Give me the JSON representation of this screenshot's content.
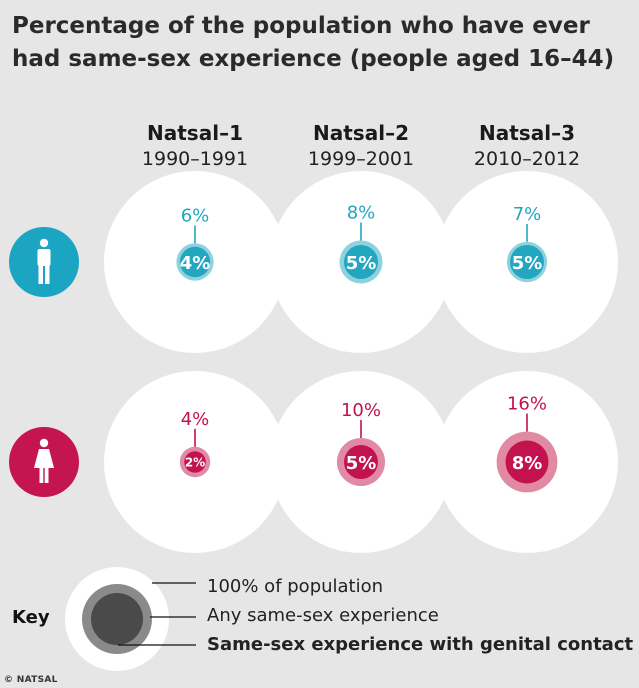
{
  "title": "Percentage of the population who have ever had same-sex experience (people aged 16–44)",
  "source": "© NATSAL",
  "colors": {
    "men_inner": "#23a6c0",
    "men_outer": "#8fd2df",
    "women_inner": "#c2124f",
    "women_outer": "#e08aa4",
    "men_icon_bg": "#1ba5c3",
    "women_icon_bg": "#c51551",
    "key_outer": "#8a8a8a",
    "key_inner": "#4a4a4a"
  },
  "key": {
    "title": "Key",
    "items": [
      "100% of population",
      "Any same-sex experience",
      "Same-sex experience with genital contact"
    ]
  },
  "chart_data": {
    "type": "bubble",
    "title": "Percentage of the population who have ever had same-sex experience (people aged 16–44)",
    "categories": [
      {
        "name": "Natsal–1",
        "years": "1990–1991"
      },
      {
        "name": "Natsal–2",
        "years": "1999–2001"
      },
      {
        "name": "Natsal–3",
        "years": "2010–2012"
      }
    ],
    "series": [
      {
        "group": "men",
        "icon": "male-icon",
        "any": [
          6,
          8,
          7
        ],
        "genital": [
          4,
          5,
          5
        ],
        "any_labels": [
          "6%",
          "8%",
          "7%"
        ],
        "genital_labels": [
          "4%",
          "5%",
          "5%"
        ]
      },
      {
        "group": "women",
        "icon": "female-icon",
        "any": [
          4,
          10,
          16
        ],
        "genital": [
          2,
          5,
          8
        ],
        "any_labels": [
          "4%",
          "10%",
          "16%"
        ],
        "genital_labels": [
          "2%",
          "5%",
          "8%"
        ]
      }
    ]
  }
}
